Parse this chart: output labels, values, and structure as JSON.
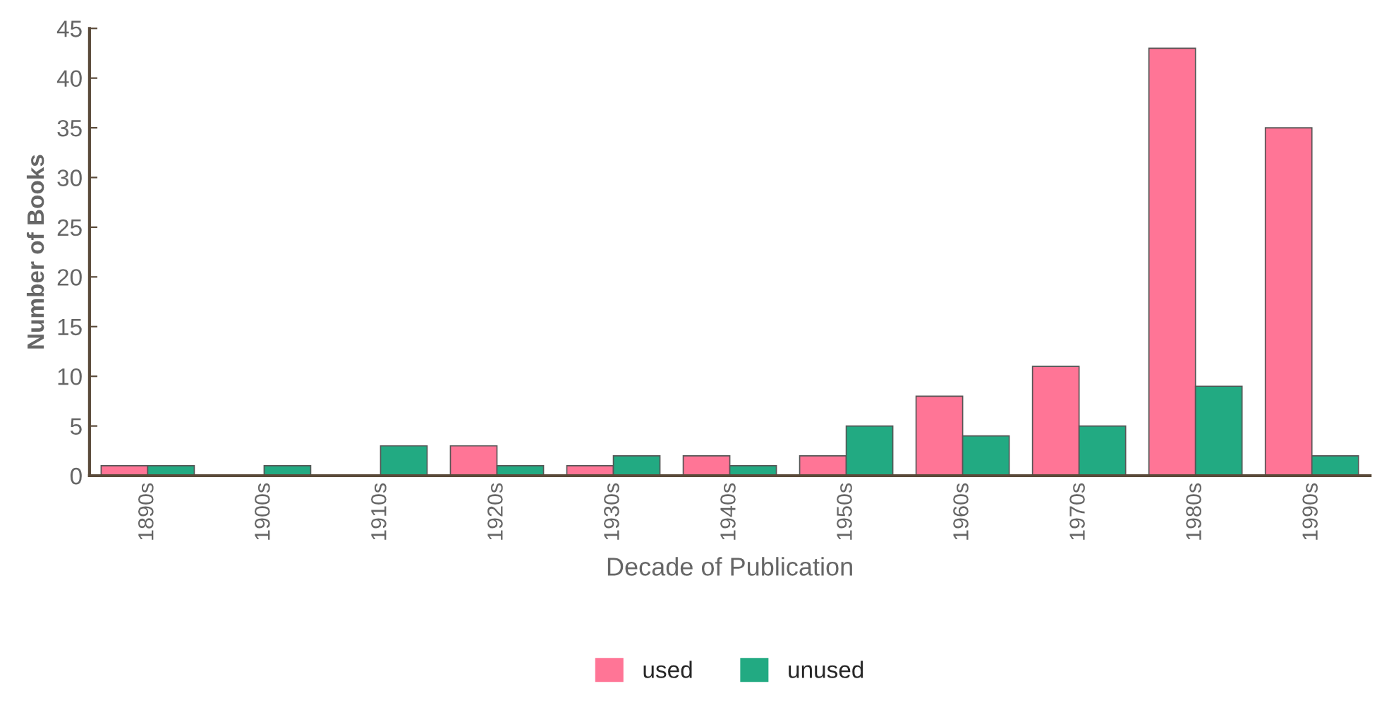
{
  "chart_data": {
    "type": "bar",
    "xlabel": "Decade of Publication",
    "ylabel": "Number of Books",
    "categories": [
      "1890s",
      "1900s",
      "1910s",
      "1920s",
      "1930s",
      "1940s",
      "1950s",
      "1960s",
      "1970s",
      "1980s",
      "1990s"
    ],
    "series": [
      {
        "name": "used",
        "color": "#ff7596",
        "values": [
          1,
          0,
          0,
          3,
          1,
          2,
          2,
          8,
          11,
          43,
          35
        ]
      },
      {
        "name": "unused",
        "color": "#22aa82",
        "values": [
          1,
          1,
          3,
          1,
          2,
          1,
          5,
          4,
          5,
          9,
          2
        ]
      }
    ],
    "ylim": [
      0,
      45
    ],
    "yticks": [
      0,
      5,
      10,
      15,
      20,
      25,
      30,
      35,
      40,
      45
    ],
    "grid": false,
    "legend": "bottom"
  }
}
